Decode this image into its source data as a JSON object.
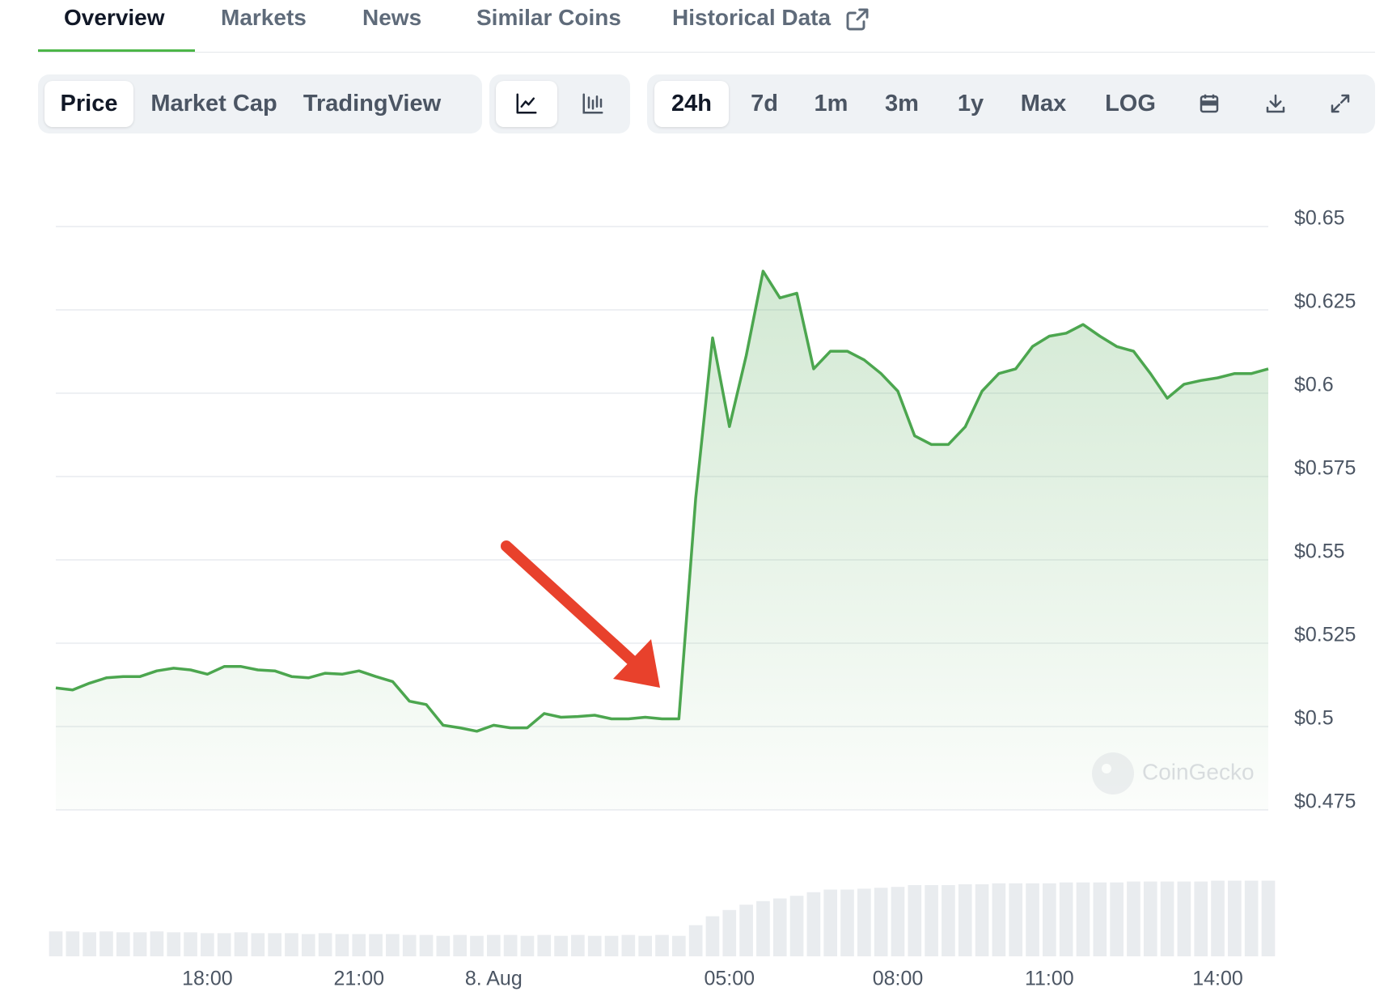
{
  "tabs": [
    "Overview",
    "Markets",
    "News",
    "Similar Coins",
    "Historical Data"
  ],
  "toolbar": {
    "metrics": [
      "Price",
      "Market Cap",
      "TradingView"
    ],
    "ranges": [
      "24h",
      "7d",
      "1m",
      "3m",
      "1y",
      "Max",
      "LOG"
    ]
  },
  "chart_data": {
    "type": "line",
    "color": "#4ca64f",
    "watermark": "CoinGecko",
    "categories": [
      null,
      null,
      null,
      null,
      null,
      null,
      null,
      null,
      null,
      "18:00",
      null,
      null,
      null,
      null,
      null,
      null,
      null,
      null,
      "21:00",
      null,
      null,
      null,
      null,
      null,
      null,
      null,
      "8. Aug",
      null,
      null,
      null,
      null,
      null,
      null,
      null,
      null,
      null,
      null,
      null,
      null,
      null,
      "05:00",
      null,
      null,
      null,
      null,
      null,
      null,
      null,
      null,
      null,
      "08:00",
      null,
      null,
      null,
      null,
      null,
      null,
      null,
      null,
      "11:00",
      null,
      null,
      null,
      null,
      null,
      null,
      null,
      null,
      null,
      "14:00",
      null,
      null,
      null
    ],
    "values": [
      0.5116,
      0.511,
      0.513,
      0.5146,
      0.515,
      0.515,
      0.5167,
      0.5175,
      0.517,
      0.5157,
      0.518,
      0.518,
      0.517,
      0.5167,
      0.515,
      0.5146,
      0.516,
      0.5157,
      0.5167,
      0.515,
      0.5135,
      0.5076,
      0.5066,
      0.5004,
      0.4996,
      0.4986,
      0.5004,
      0.4996,
      0.4996,
      0.5039,
      0.5028,
      0.503,
      0.5034,
      0.5023,
      0.5023,
      0.5028,
      0.5023,
      0.5023,
      0.5685,
      0.6166,
      0.59,
      0.6113,
      0.6366,
      0.6286,
      0.63,
      0.6073,
      0.6126,
      0.6126,
      0.61,
      0.6059,
      0.6006,
      0.5872,
      0.5846,
      0.5846,
      0.5899,
      0.6006,
      0.6059,
      0.6073,
      0.614,
      0.6171,
      0.618,
      0.6206,
      0.6171,
      0.614,
      0.6126,
      0.6059,
      0.5985,
      0.6027,
      0.6038,
      0.6046,
      0.6059,
      0.6059,
      0.6073
    ],
    "ylim": [
      0.475,
      0.65
    ],
    "yticks": [
      {
        "value": 0.65,
        "label": "$0.65"
      },
      {
        "value": 0.625,
        "label": "$0.625"
      },
      {
        "value": 0.6,
        "label": "$0.6"
      },
      {
        "value": 0.575,
        "label": "$0.575"
      },
      {
        "value": 0.55,
        "label": "$0.55"
      },
      {
        "value": 0.525,
        "label": "$0.525"
      },
      {
        "value": 0.5,
        "label": "$0.5"
      },
      {
        "value": 0.475,
        "label": "$0.475"
      }
    ],
    "grid": true,
    "volume": {
      "color": "#e9ecef",
      "ylim": [
        0,
        100
      ],
      "values": [
        28,
        28,
        27,
        28,
        27,
        27,
        28,
        27,
        27,
        26,
        26,
        27,
        26,
        26,
        26,
        25,
        26,
        25,
        25,
        25,
        25,
        24,
        24,
        23,
        24,
        23,
        24,
        24,
        23,
        24,
        23,
        24,
        23,
        23,
        24,
        23,
        24,
        23,
        35,
        45,
        52,
        58,
        62,
        65,
        68,
        72,
        75,
        75,
        76,
        77,
        78,
        80,
        80,
        80,
        81,
        81,
        82,
        82,
        82,
        82,
        83,
        83,
        83,
        83,
        84,
        84,
        84,
        84,
        84,
        85,
        85,
        85,
        85
      ]
    }
  }
}
